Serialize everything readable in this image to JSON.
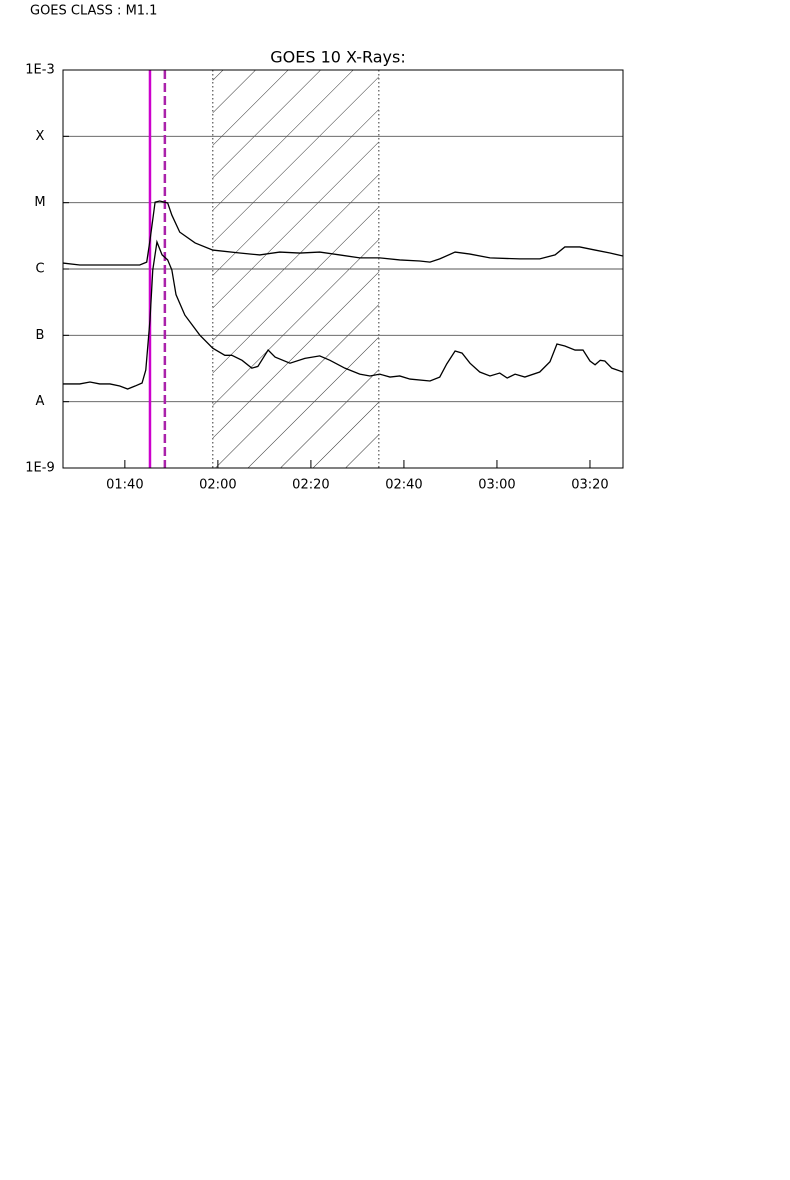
{
  "header": "GOES CLASS : M1.1",
  "chart_data": {
    "type": "line",
    "title": "GOES 10 X-Rays:",
    "log_scale": true,
    "grid": true,
    "xlim": [
      86.7,
      207.1
    ],
    "xticks": [
      {
        "value": 100,
        "label": "01:40"
      },
      {
        "value": 120,
        "label": "02:00"
      },
      {
        "value": 140,
        "label": "02:20"
      },
      {
        "value": 160,
        "label": "02:40"
      },
      {
        "value": 180,
        "label": "03:00"
      },
      {
        "value": 200,
        "label": "03:20"
      }
    ],
    "ylim": [
      1e-09,
      0.001
    ],
    "yticks": [
      {
        "value": 1e-09,
        "label": "1E-9"
      },
      {
        "value": 1e-08,
        "label": "A"
      },
      {
        "value": 1e-07,
        "label": "B"
      },
      {
        "value": 1e-06,
        "label": "C"
      },
      {
        "value": 1e-05,
        "label": "M"
      },
      {
        "value": 0.0001,
        "label": "X"
      },
      {
        "value": 0.001,
        "label": "1E-3"
      }
    ],
    "markers": [
      {
        "x": 105.4,
        "color": "#cc00cc",
        "style": "solid"
      },
      {
        "x": 108.6,
        "color": "#aa22aa",
        "style": "dashed"
      }
    ],
    "shaded_region": [
      118.9,
      154.6
    ],
    "series": [
      {
        "color": "#000000",
        "x": [
          86.7,
          90.3,
          94.6,
          98.9,
          103.2,
          104.7,
          105.4,
          106.5,
          107.5,
          109.2,
          110.1,
          111.8,
          115.1,
          118.9,
          124.7,
          129.0,
          133.3,
          137.6,
          141.9,
          146.2,
          150.5,
          154.8,
          159.1,
          163.4,
          165.6,
          167.7,
          171.0,
          174.2,
          178.5,
          184.9,
          189.2,
          192.5,
          194.6,
          197.8,
          201.1,
          204.3,
          207.1
        ],
        "values": [
          1.23e-06,
          1.15e-06,
          1.15e-06,
          1.15e-06,
          1.15e-06,
          1.27e-06,
          2.7e-06,
          1.02e-05,
          1.06e-05,
          9.9e-06,
          6.5e-06,
          3.6e-06,
          2.47e-06,
          1.93e-06,
          1.74e-06,
          1.63e-06,
          1.8e-06,
          1.74e-06,
          1.8e-06,
          1.63e-06,
          1.47e-06,
          1.47e-06,
          1.37e-06,
          1.32e-06,
          1.27e-06,
          1.42e-06,
          1.8e-06,
          1.68e-06,
          1.47e-06,
          1.42e-06,
          1.42e-06,
          1.63e-06,
          2.15e-06,
          2.15e-06,
          1.93e-06,
          1.74e-06,
          1.57e-06
        ]
      },
      {
        "color": "#000000",
        "x": [
          86.7,
          90.3,
          92.5,
          94.6,
          96.8,
          98.9,
          100.6,
          102.2,
          103.7,
          104.5,
          105.4,
          106.0,
          106.9,
          108.0,
          109.2,
          110.1,
          111.0,
          112.9,
          116.1,
          118.9,
          121.5,
          123.0,
          125.2,
          127.3,
          128.6,
          130.8,
          132.3,
          135.5,
          138.7,
          141.9,
          144.1,
          147.3,
          150.5,
          152.7,
          154.8,
          157.0,
          159.1,
          161.3,
          165.6,
          167.7,
          169.2,
          171.0,
          172.5,
          174.2,
          176.3,
          178.5,
          180.6,
          182.2,
          183.9,
          186.0,
          189.2,
          191.4,
          192.9,
          194.6,
          196.8,
          198.5,
          200.0,
          201.1,
          202.2,
          203.2,
          204.7,
          207.1
        ],
        "values": [
          1.85e-08,
          1.85e-08,
          1.98e-08,
          1.85e-08,
          1.85e-08,
          1.72e-08,
          1.55e-08,
          1.72e-08,
          1.91e-08,
          3e-08,
          1.7e-07,
          9.7e-07,
          2.55e-06,
          1.63e-06,
          1.37e-06,
          9.7e-07,
          4.1e-07,
          2.02e-07,
          1.01e-07,
          6.4e-08,
          5e-08,
          5e-08,
          4.2e-08,
          3.2e-08,
          3.4e-08,
          6e-08,
          4.7e-08,
          3.8e-08,
          4.5e-08,
          4.9e-08,
          4.2e-08,
          3.2e-08,
          2.6e-08,
          2.44e-08,
          2.6e-08,
          2.35e-08,
          2.44e-08,
          2.19e-08,
          2.05e-08,
          2.35e-08,
          3.7e-08,
          5.8e-08,
          5.4e-08,
          3.8e-08,
          2.8e-08,
          2.44e-08,
          2.7e-08,
          2.27e-08,
          2.6e-08,
          2.35e-08,
          2.8e-08,
          4e-08,
          7.4e-08,
          6.9e-08,
          6e-08,
          6e-08,
          4.1e-08,
          3.6e-08,
          4.2e-08,
          4.1e-08,
          3.2e-08,
          2.8e-08
        ]
      }
    ]
  }
}
